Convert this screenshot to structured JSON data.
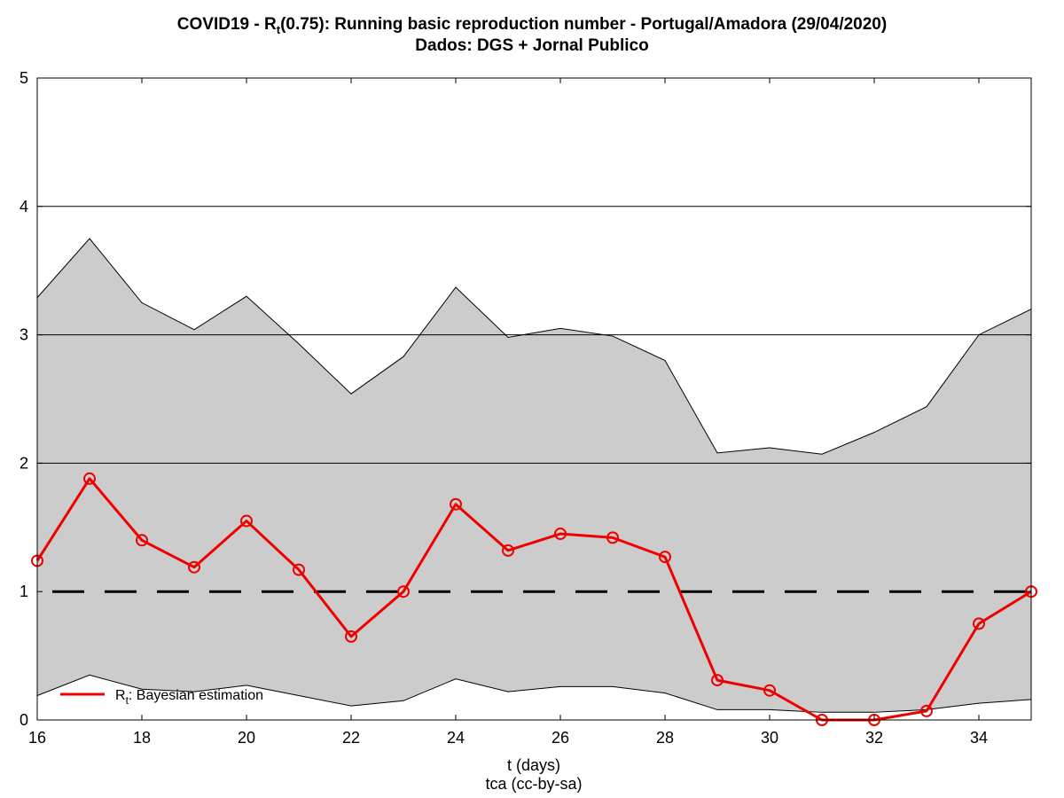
{
  "chart_data": {
    "type": "line",
    "title_prefix": "COVID19 - R",
    "title_sub": "t",
    "title_suffix": "(0.75): Running basic reproduction number - Portugal/Amadora (29/04/2020)",
    "subtitle": "Dados: DGS + Jornal Publico",
    "xlabel": "t (days)",
    "caption": "tca (cc-by-sa)",
    "ylabel": "",
    "xlim": [
      16,
      35
    ],
    "ylim": [
      0,
      5
    ],
    "xticks": [
      16,
      18,
      20,
      22,
      24,
      26,
      28,
      30,
      32,
      34
    ],
    "yticks": [
      0,
      1,
      2,
      3,
      4,
      5
    ],
    "grid_y": [
      2,
      3,
      4
    ],
    "threshold": 1,
    "legend": {
      "main": "R",
      "sub": "t",
      "rest": ": Bayesian estimation",
      "placement": "bottom-left"
    },
    "colors": {
      "line": "#ee0000",
      "band": "#cccccc",
      "threshold": "#000000"
    },
    "x": [
      16,
      17,
      18,
      19,
      20,
      21,
      22,
      23,
      24,
      25,
      26,
      27,
      28,
      29,
      30,
      31,
      32,
      33,
      34,
      35
    ],
    "series": [
      {
        "values": [
          1.24,
          1.88,
          1.4,
          1.19,
          1.55,
          1.17,
          0.65,
          1.0,
          1.68,
          1.32,
          1.45,
          1.42,
          1.27,
          0.31,
          0.23,
          0.0,
          0.0,
          0.07,
          0.75,
          1.0
        ]
      }
    ],
    "band_upper": [
      3.29,
      3.75,
      3.25,
      3.04,
      3.3,
      2.93,
      2.54,
      2.83,
      3.37,
      2.98,
      3.05,
      2.99,
      2.8,
      2.08,
      2.12,
      2.07,
      2.24,
      2.44,
      3.0,
      3.2
    ],
    "band_lower": [
      0.19,
      0.35,
      0.24,
      0.22,
      0.27,
      0.19,
      0.11,
      0.15,
      0.32,
      0.22,
      0.26,
      0.26,
      0.21,
      0.08,
      0.08,
      0.06,
      0.06,
      0.08,
      0.13,
      0.16
    ]
  }
}
